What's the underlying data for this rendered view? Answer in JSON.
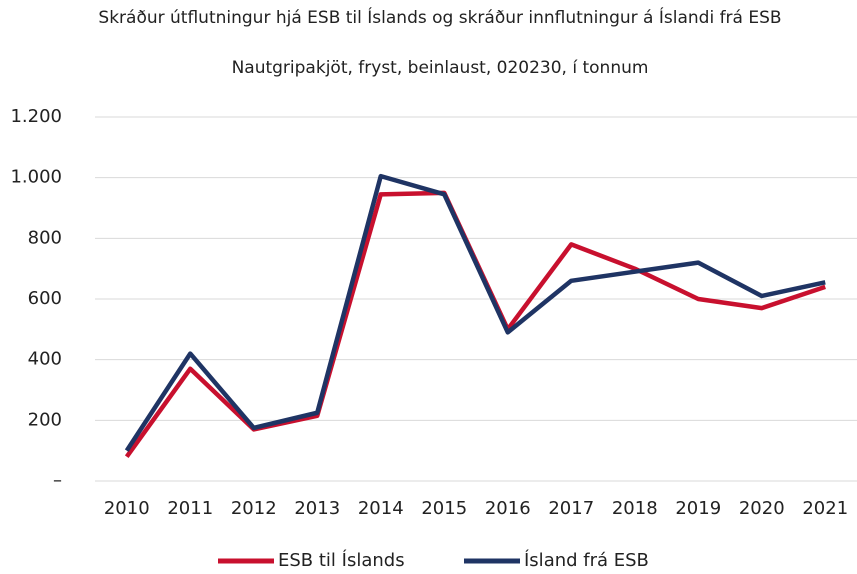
{
  "chart_data": {
    "type": "line",
    "title": "Skráður útflutningur hjá ESB til Íslands og skráður innflutningur á Íslandi frá ESB",
    "subtitle": "Nautgripakjöt, fryst, beinlaust, 020230, í tonnum",
    "categories": [
      "2010",
      "2011",
      "2012",
      "2013",
      "2014",
      "2015",
      "2016",
      "2017",
      "2018",
      "2019",
      "2020",
      "2021"
    ],
    "series": [
      {
        "name": "ESB til Íslands",
        "color": "#c8102e",
        "values": [
          80,
          370,
          170,
          215,
          945,
          950,
          500,
          780,
          700,
          600,
          570,
          640
        ]
      },
      {
        "name": "Ísland frá ESB",
        "color": "#1f3464",
        "values": [
          100,
          420,
          175,
          225,
          1005,
          945,
          490,
          660,
          690,
          720,
          610,
          655
        ]
      }
    ],
    "ylim": [
      0,
      1200
    ],
    "yticks": [
      {
        "value": 0,
        "label": "–"
      },
      200,
      400,
      600,
      800,
      {
        "value": 1000,
        "label": "1.000"
      },
      {
        "value": 1200,
        "label": "1.200"
      }
    ],
    "grid": true,
    "legend": "bottom"
  }
}
